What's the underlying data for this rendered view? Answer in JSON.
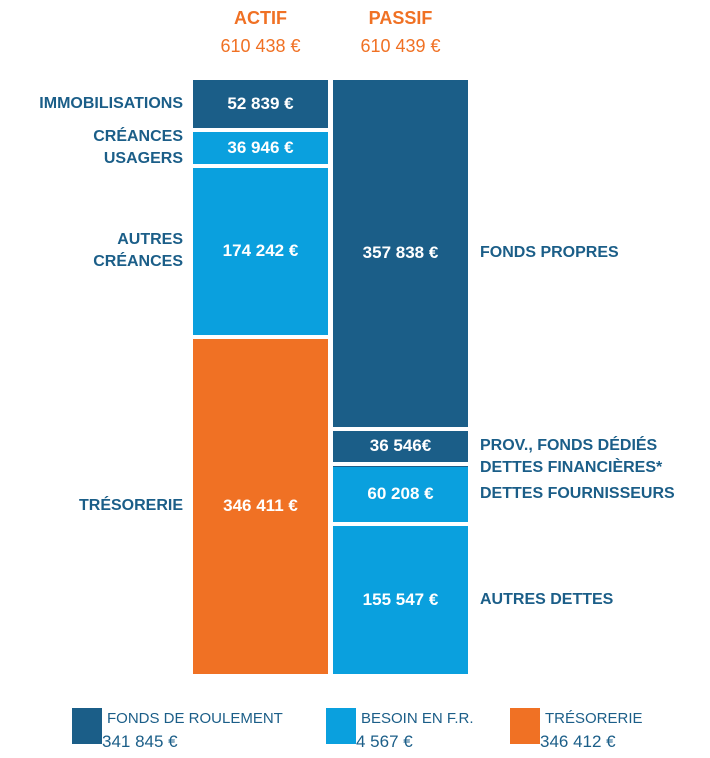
{
  "chart_data": {
    "type": "balance-sheet",
    "columns": [
      {
        "name": "ACTIF",
        "total": 610438,
        "total_label": "610 438 €",
        "segments": [
          {
            "name": "IMMOBILISATIONS",
            "value": 52839,
            "value_label": "52 839 €",
            "color": "#1b5e88"
          },
          {
            "name": "CRÉANCES USAGERS",
            "value": 36946,
            "value_label": "36 946 €",
            "color": "#0aa0de"
          },
          {
            "name": "AUTRES CRÉANCES",
            "value": 174242,
            "value_label": "174 242 €",
            "color": "#0aa0de"
          },
          {
            "name": "TRÉSORERIE",
            "value": 346411,
            "value_label": "346 411 €",
            "color": "#f07124"
          }
        ]
      },
      {
        "name": "PASSIF",
        "total": 610439,
        "total_label": "610 439 €",
        "segments": [
          {
            "name": "FONDS PROPRES",
            "value": 357838,
            "value_label": "357 838 €",
            "color": "#1b5e88"
          },
          {
            "name": "PROV., FONDS DÉDIÉS",
            "value": 36546,
            "value_label": "36 546€",
            "color": "#1b5e88"
          },
          {
            "name": "DETTES FINANCIÈRES*",
            "value": 300,
            "color": "#1b5e88"
          },
          {
            "name": "DETTES FOURNISSEURS",
            "value": 60208,
            "value_label": "60 208  €",
            "color": "#0aa0de"
          },
          {
            "name": "AUTRES DETTES",
            "value": 155547,
            "value_label": "155 547 €",
            "color": "#0aa0de"
          }
        ]
      }
    ],
    "legend": [
      {
        "name": "FONDS DE ROULEMENT",
        "value": 341845,
        "value_label": "341 845 €",
        "color": "#1b5e88"
      },
      {
        "name": "BESOIN EN F.R.",
        "value": 4567,
        "value_label": "4 567 €",
        "color": "#0aa0de"
      },
      {
        "name": "TRÉSORERIE",
        "value": 346412,
        "value_label": "346 412 €",
        "color": "#f07124"
      }
    ]
  }
}
